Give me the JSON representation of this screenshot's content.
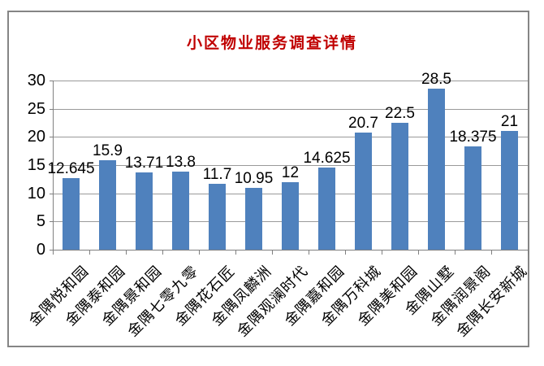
{
  "chart_data": {
    "type": "bar",
    "title": "小区物业服务调查详情",
    "categories": [
      "金隅悦和园",
      "金隅泰和园",
      "金隅景和园",
      "金隅七零九零",
      "金隅花石匠",
      "金隅凤麟洲",
      "金隅观澜时代",
      "金隅嘉和园",
      "金隅万科城",
      "金隅美和园",
      "金隅山墅",
      "金隅润景阁",
      "金隅长安新城"
    ],
    "values": [
      12.645,
      15.9,
      13.71,
      13.8,
      11.7,
      10.95,
      12,
      14.625,
      20.7,
      22.5,
      28.5,
      18.375,
      21
    ],
    "yticks": [
      0,
      5,
      10,
      15,
      20,
      25,
      30
    ],
    "ylim": [
      0,
      30
    ],
    "xlabel": "",
    "ylabel": "",
    "grid": true,
    "legend": false,
    "colors": {
      "bar": "#4F81BD",
      "title": "#C00000",
      "grid": "#9a9a9a",
      "axis": "#808080",
      "frame": "#858585",
      "text": "#000000"
    }
  }
}
